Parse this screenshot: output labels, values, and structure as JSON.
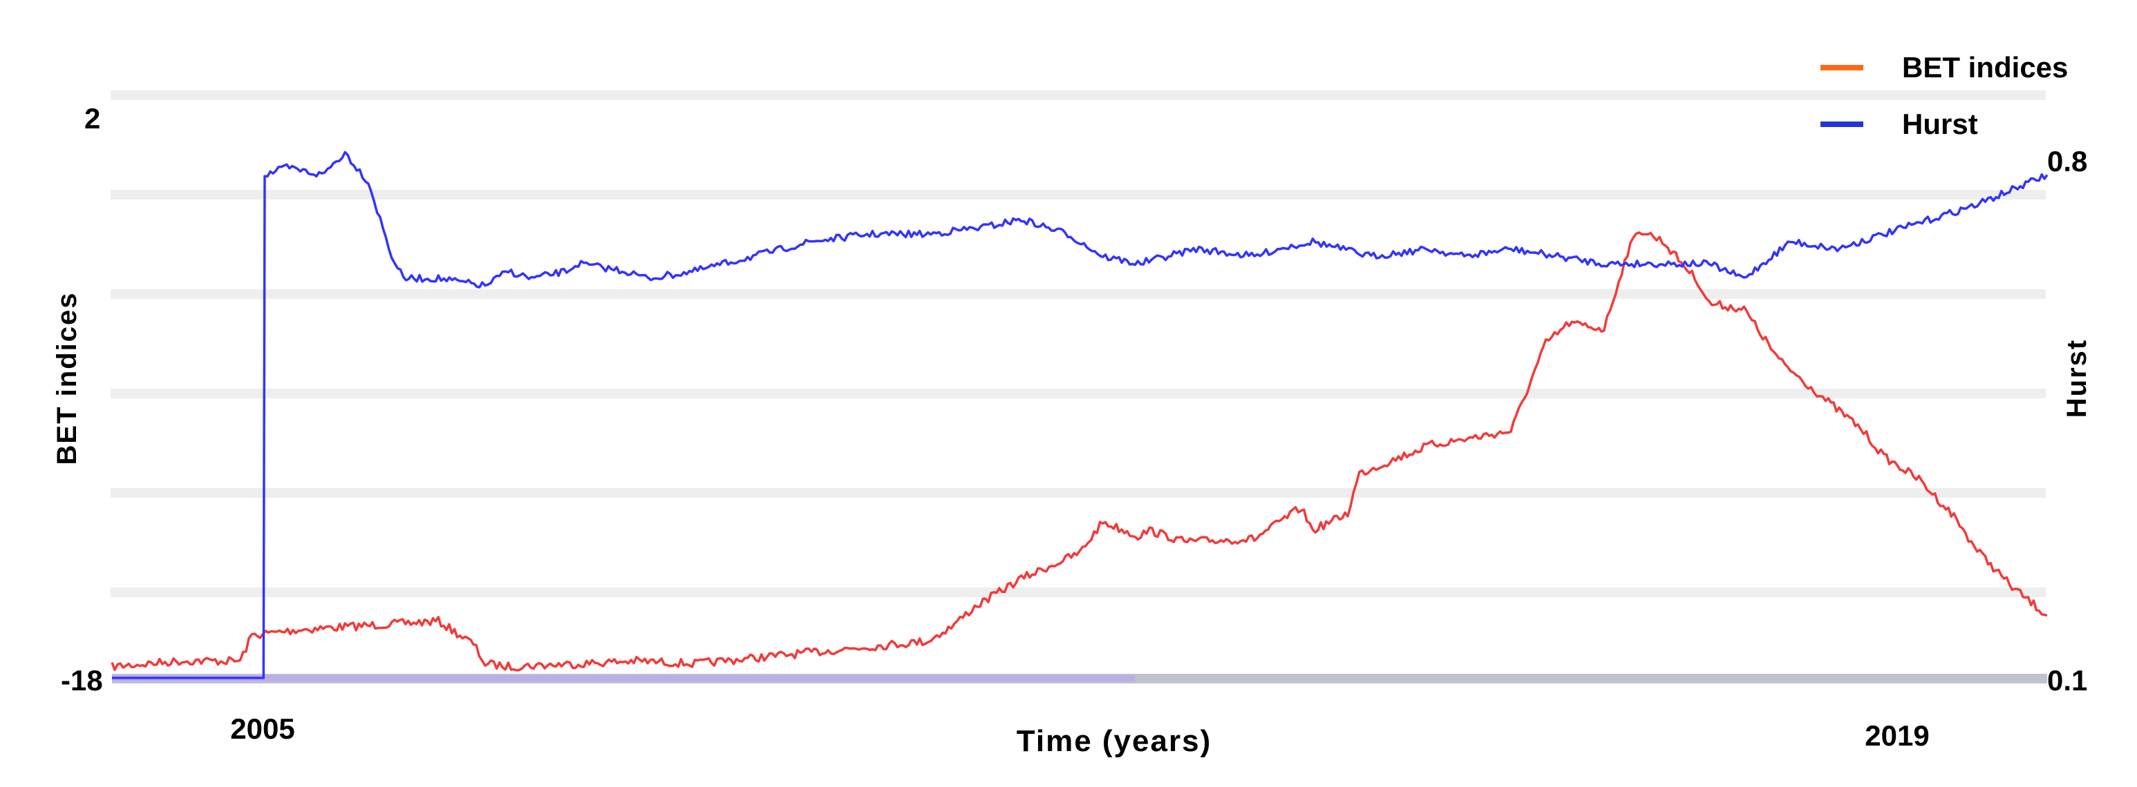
{
  "chart_data": {
    "type": "line",
    "title": "",
    "xlabel": "Time (years)",
    "ylabel_left": "BET indices",
    "ylabel_right": "Hurst",
    "x_ticks": [
      "2005",
      "2019"
    ],
    "y_left_ticks": [
      "2",
      "-18"
    ],
    "y_right_ticks": [
      "0.8",
      "0.1"
    ],
    "y_left_range": [
      -18,
      2
    ],
    "y_right_range": [
      0.1,
      0.8
    ],
    "x_range": [
      2004,
      2020.6
    ],
    "grid": true,
    "legend_position": "top-right",
    "series": [
      {
        "name": "BET indices",
        "axis": "left",
        "color": "#f23a3a",
        "legend_color": "#ff6a1a",
        "x": [
          2004.0,
          2004.6,
          2005.1,
          2005.2,
          2005.6,
          2006.0,
          2006.8,
          2007.1,
          2007.2,
          2007.4,
          2008.0,
          2008.5,
          2009.0,
          2009.5,
          2010.0,
          2010.5,
          2011.0,
          2011.2,
          2011.4,
          2011.8,
          2012.3,
          2012.5,
          2012.8,
          2012.9,
          2013.2,
          2013.8,
          2014.2,
          2014.3,
          2014.6,
          2014.7,
          2015.3,
          2016.0,
          2016.3,
          2016.5,
          2016.8,
          2017.0,
          2017.1,
          2017.3,
          2017.6,
          2017.7,
          2018.0,
          2018.3,
          2018.5,
          2018.7,
          2019.0,
          2019.2,
          2019.5,
          2019.8,
          2020.0,
          2020.3,
          2020.6
        ],
        "values": [
          -17.6,
          -17.4,
          -17.4,
          -16.5,
          -16.3,
          -16.2,
          -16.0,
          -16.8,
          -17.5,
          -17.6,
          -17.5,
          -17.4,
          -17.5,
          -17.3,
          -17.1,
          -16.9,
          -16.7,
          -16.2,
          -15.5,
          -14.5,
          -13.6,
          -12.5,
          -13.0,
          -12.8,
          -13.2,
          -13.1,
          -12.0,
          -12.8,
          -12.2,
          -10.8,
          -9.8,
          -9.3,
          -6.2,
          -5.5,
          -5.7,
          -3.0,
          -2.2,
          -2.6,
          -4.0,
          -4.8,
          -5.0,
          -6.8,
          -7.5,
          -8.2,
          -9.2,
          -10.2,
          -11.0,
          -12.3,
          -13.5,
          -14.8,
          -15.8
        ]
      },
      {
        "name": "Hurst",
        "axis": "right",
        "color": "#3333ff",
        "legend_color": "#2233dd",
        "x": [
          2004.0,
          2005.0,
          2005.3,
          2005.31,
          2005.5,
          2005.8,
          2006.0,
          2006.2,
          2006.4,
          2006.5,
          2006.8,
          2007.2,
          2007.4,
          2007.6,
          2007.9,
          2008.0,
          2008.4,
          2008.6,
          2009.0,
          2009.5,
          2010.0,
          2010.5,
          2011.0,
          2011.5,
          2011.8,
          2012.2,
          2012.5,
          2012.8,
          2013.3,
          2013.8,
          2014.0,
          2014.3,
          2014.8,
          2015.3,
          2015.6,
          2016.0,
          2016.4,
          2016.8,
          2017.2,
          2017.4,
          2017.7,
          2018.0,
          2018.4,
          2018.8,
          2019.2,
          2019.6,
          2020.0,
          2020.3,
          2020.6
        ],
        "values": [
          0.1,
          0.1,
          0.1,
          0.78,
          0.79,
          0.78,
          0.81,
          0.77,
          0.67,
          0.64,
          0.64,
          0.63,
          0.65,
          0.64,
          0.65,
          0.66,
          0.65,
          0.64,
          0.65,
          0.67,
          0.69,
          0.7,
          0.7,
          0.71,
          0.72,
          0.7,
          0.67,
          0.66,
          0.68,
          0.67,
          0.68,
          0.69,
          0.67,
          0.68,
          0.67,
          0.68,
          0.67,
          0.66,
          0.66,
          0.66,
          0.66,
          0.64,
          0.69,
          0.68,
          0.7,
          0.72,
          0.74,
          0.76,
          0.78
        ]
      }
    ]
  }
}
